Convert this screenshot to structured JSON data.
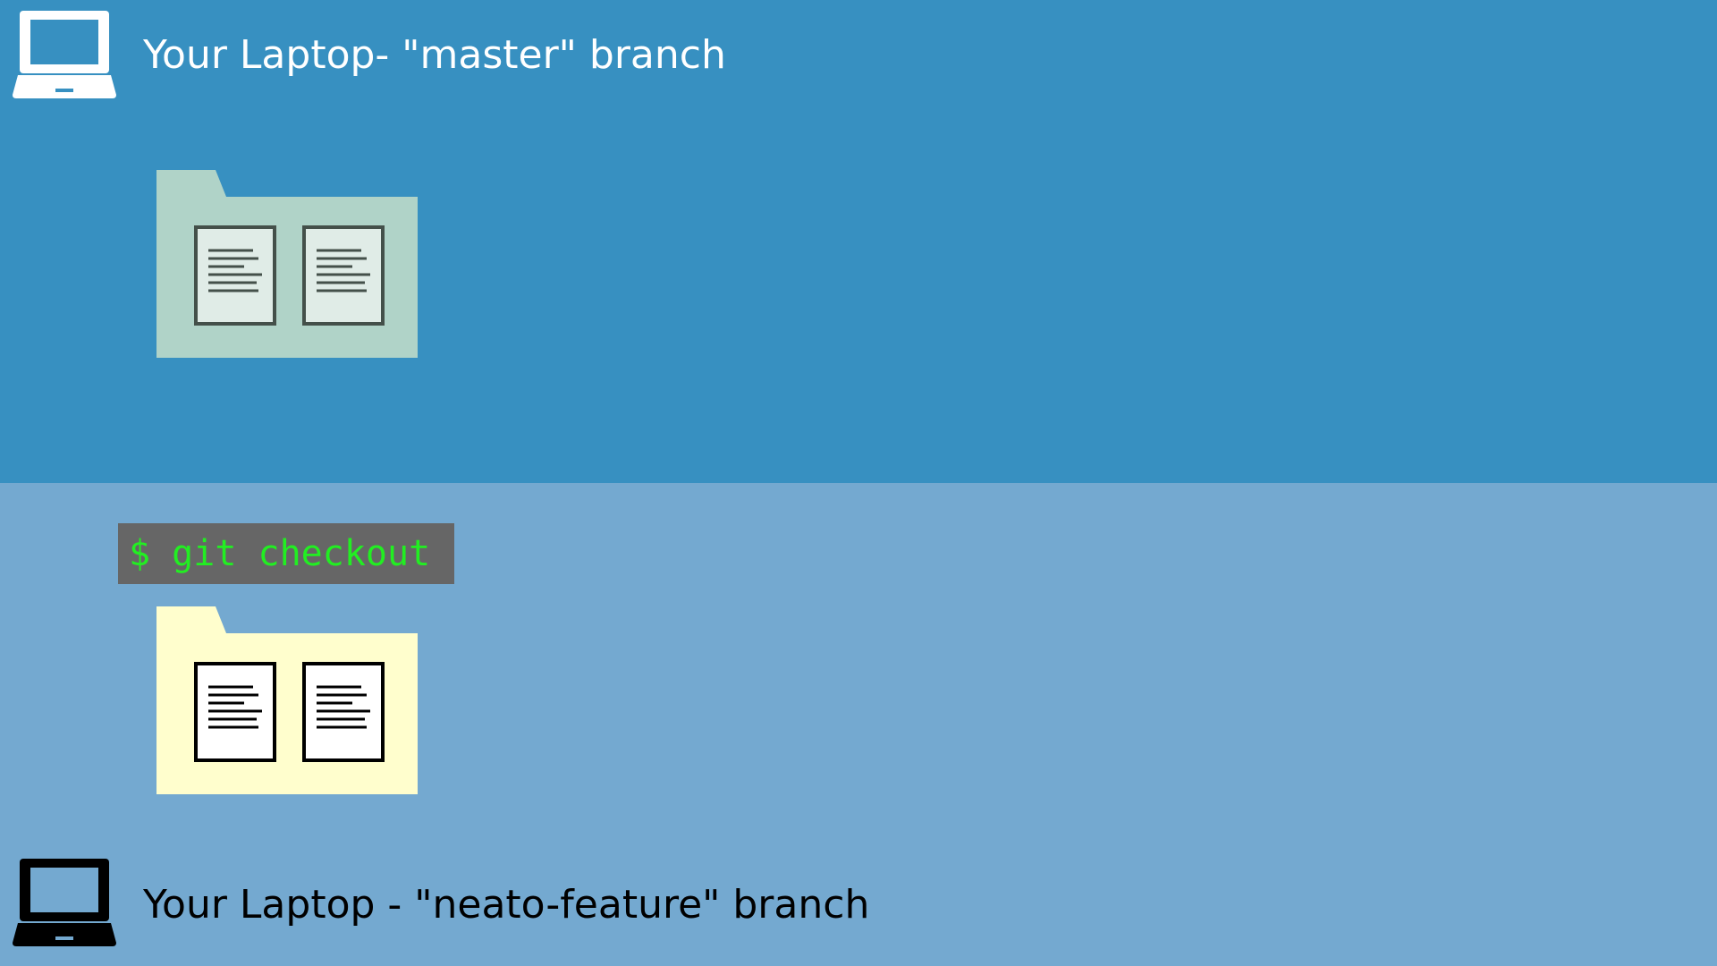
{
  "colors": {
    "top_background": "#3790c1",
    "bottom_background": "#74a9d0",
    "master_folder": "#b0d3c8",
    "master_doc_fill": "#e0ece7",
    "master_doc_stroke": "#44504a",
    "feature_folder": "#fffecd",
    "feature_doc_fill": "#ffffff",
    "feature_doc_stroke": "#000000",
    "terminal_bg": "#666666",
    "terminal_text": "#22ee22",
    "top_text": "#ffffff",
    "bottom_text": "#000000"
  },
  "master": {
    "title": "Your Laptop- \"master\" branch",
    "icon": "laptop-icon-white"
  },
  "terminal": {
    "command": "$ git checkout"
  },
  "feature": {
    "title": "Your Laptop - \"neato-feature\" branch",
    "icon": "laptop-icon-black"
  }
}
